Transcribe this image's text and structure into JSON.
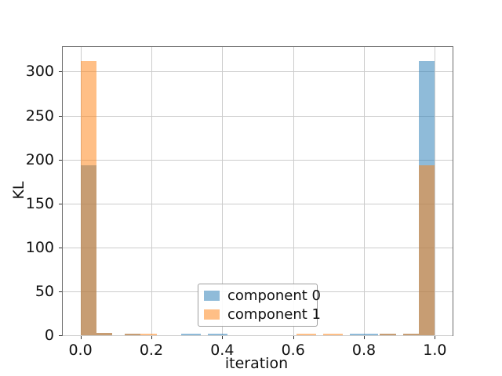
{
  "chart_data": {
    "type": "bar",
    "subtype": "overlapping-translucent-histogram",
    "title": "",
    "xlabel": "iteration",
    "ylabel": "KL",
    "xlim": [
      -0.05,
      1.05
    ],
    "ylim": [
      0,
      328
    ],
    "grid": true,
    "xticks": {
      "values": [
        0.0,
        0.2,
        0.4,
        0.6,
        0.8,
        1.0
      ],
      "labels": [
        "0.0",
        "0.2",
        "0.4",
        "0.6",
        "0.8",
        "1.0"
      ]
    },
    "yticks": {
      "values": [
        0,
        50,
        100,
        150,
        200,
        250,
        300
      ],
      "labels": [
        "0",
        "50",
        "100",
        "150",
        "200",
        "250",
        "300"
      ]
    },
    "legend": {
      "position": "lower center",
      "entries": [
        {
          "label": "component 0",
          "color": "#1f77b4"
        },
        {
          "label": "component 1",
          "color": "#ff7f0e"
        }
      ]
    },
    "series": [
      {
        "name": "component 0",
        "color": "#1f77b4",
        "alpha": 0.5
      },
      {
        "name": "component 1",
        "color": "#ff7f0e",
        "alpha": 0.5
      }
    ],
    "bars": [
      {
        "x_start": 0.0,
        "x_end": 0.045,
        "component0": 193,
        "component1": 312
      },
      {
        "x_start": 0.045,
        "x_end": 0.09,
        "component0": 2.5,
        "component1": 2.5
      },
      {
        "x_start": 0.125,
        "x_end": 0.17,
        "component0": 1.5,
        "component1": 1.5
      },
      {
        "x_start": 0.17,
        "x_end": 0.215,
        "component0": 0,
        "component1": 1.5
      },
      {
        "x_start": 0.285,
        "x_end": 0.34,
        "component0": 1.5,
        "component1": 0
      },
      {
        "x_start": 0.36,
        "x_end": 0.415,
        "component0": 1.5,
        "component1": 0
      },
      {
        "x_start": 0.61,
        "x_end": 0.665,
        "component0": 0,
        "component1": 1.5
      },
      {
        "x_start": 0.685,
        "x_end": 0.74,
        "component0": 0,
        "component1": 1.5
      },
      {
        "x_start": 0.76,
        "x_end": 0.84,
        "component0": 1.8,
        "component1": 0
      },
      {
        "x_start": 0.845,
        "x_end": 0.89,
        "component0": 1.5,
        "component1": 1.5
      },
      {
        "x_start": 0.91,
        "x_end": 0.955,
        "component0": 2.2,
        "component1": 2.2
      },
      {
        "x_start": 0.955,
        "x_end": 1.0,
        "component0": 312,
        "component1": 193
      }
    ],
    "colors": {
      "grid": "#cccccc",
      "spine": "#6b6b6b",
      "text": "#111111",
      "fill_alpha": 0.5
    }
  }
}
